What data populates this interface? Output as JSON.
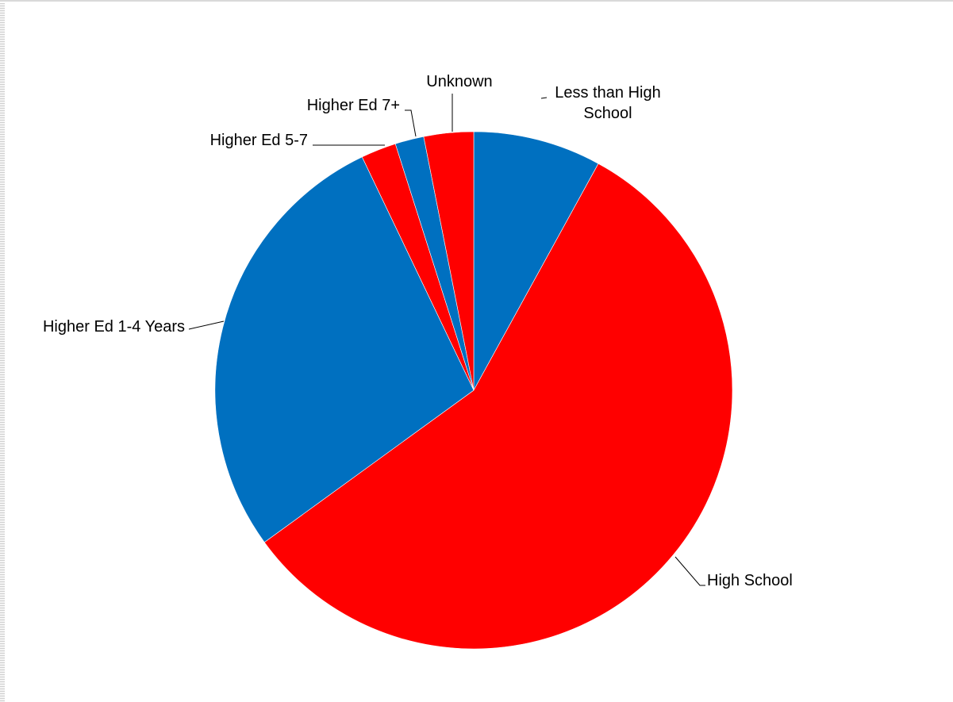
{
  "chart_data": {
    "type": "pie",
    "start_angle_deg": 0,
    "direction": "clockwise",
    "slices": [
      {
        "label": [
          "Less than High",
          "School"
        ],
        "value": 8.0,
        "color": "#0070c0"
      },
      {
        "label": [
          "High School"
        ],
        "value": 57.0,
        "color": "#ff0000"
      },
      {
        "label": [
          "Higher Ed 1-4 Years"
        ],
        "value": 27.9,
        "color": "#0070c0"
      },
      {
        "label": [
          "Higher Ed 5-7"
        ],
        "value": 2.2,
        "color": "#ff0000"
      },
      {
        "label": [
          "Higher Ed 7+"
        ],
        "value": 1.8,
        "color": "#0070c0"
      },
      {
        "label": [
          "Unknown"
        ],
        "value": 3.1,
        "color": "#ff0000"
      }
    ],
    "legend": "none",
    "labels": "outside with leader lines"
  }
}
